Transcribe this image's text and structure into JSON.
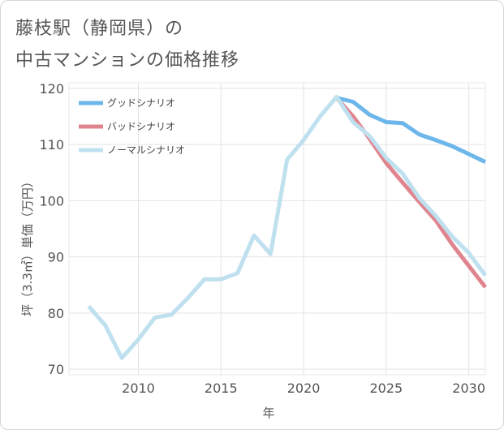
{
  "title_line1": "藤枝駅（静岡県）の",
  "title_line2": "中古マンションの価格推移",
  "chart_data": {
    "type": "line",
    "xlabel": "年",
    "ylabel": "坪（3.3㎡）単価（万円）",
    "xlim": [
      2005.8,
      2031
    ],
    "ylim": [
      69,
      121
    ],
    "xticks": [
      2010,
      2015,
      2020,
      2025,
      2030
    ],
    "yticks": [
      70,
      80,
      90,
      100,
      110,
      120
    ],
    "grid": true,
    "legend_position": "top-left",
    "series": [
      {
        "name": "グッドシナリオ",
        "color": "#6cb6ea",
        "x": [
          2022,
          2023,
          2024,
          2025,
          2026,
          2027,
          2028,
          2029,
          2030,
          2031
        ],
        "values": [
          118.3,
          117.6,
          115.3,
          114.0,
          113.8,
          111.8,
          110.8,
          109.7,
          108.3,
          106.9
        ]
      },
      {
        "name": "バッドシナリオ",
        "color": "#e0848f",
        "x": [
          2022,
          2023,
          2024,
          2025,
          2026,
          2027,
          2028,
          2029,
          2030,
          2031
        ],
        "values": [
          118.3,
          115.0,
          111.0,
          106.7,
          103.2,
          99.8,
          96.5,
          92.2,
          88.4,
          84.6
        ]
      },
      {
        "name": "ノーマルシナリオ",
        "color": "#bfe0ee",
        "x": [
          2007,
          2008,
          2009,
          2010,
          2011,
          2012,
          2013,
          2014,
          2015,
          2016,
          2017,
          2018,
          2019,
          2020,
          2021,
          2022,
          2023,
          2024,
          2025,
          2026,
          2027,
          2028,
          2029,
          2030,
          2031
        ],
        "values": [
          81.2,
          77.8,
          72.0,
          75.3,
          79.2,
          79.7,
          82.7,
          86.0,
          86.0,
          87.1,
          93.8,
          90.5,
          107.3,
          110.8,
          115.0,
          118.5,
          114.0,
          111.5,
          107.6,
          104.8,
          100.5,
          97.3,
          93.6,
          90.7,
          86.7
        ]
      }
    ]
  }
}
